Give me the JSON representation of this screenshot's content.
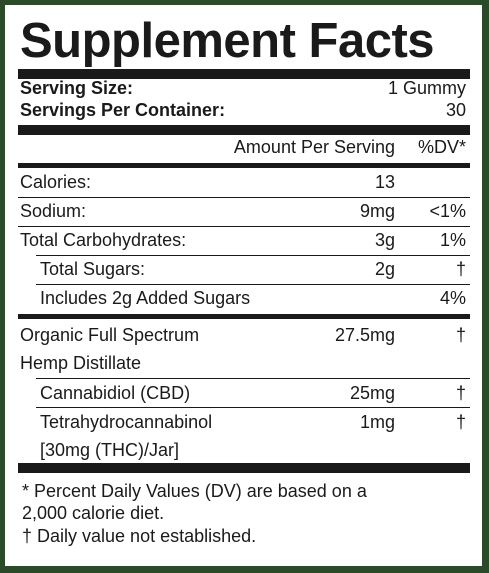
{
  "title": "Supplement Facts",
  "serving": {
    "size_label": "Serving Size:",
    "size_value": "1 Gummy",
    "per_container_label": "Servings Per Container:",
    "per_container_value": "30"
  },
  "header": {
    "amount": "Amount Per Serving",
    "dv": "%DV*"
  },
  "rows": [
    {
      "name": "Calories:",
      "amount": "13",
      "dv": ""
    },
    {
      "name": "Sodium:",
      "amount": "9mg",
      "dv": "<1%"
    },
    {
      "name": "Total Carbohydrates:",
      "amount": "3g",
      "dv": "1%"
    },
    {
      "name": "Total Sugars:",
      "amount": "2g",
      "dv": "†"
    },
    {
      "name": "Includes 2g Added Sugars",
      "amount": "",
      "dv": "4%"
    }
  ],
  "hemp": {
    "line1": "Organic Full Spectrum",
    "line2": "Hemp Distillate",
    "amount": "27.5mg",
    "dv": "†"
  },
  "cbd": {
    "name": "Cannabidiol (CBD)",
    "amount": "25mg",
    "dv": "†"
  },
  "thc": {
    "line1": "Tetrahydrocannabinol",
    "line2": "[30mg (THC)/Jar]",
    "amount": "1mg",
    "dv": "†"
  },
  "footnotes": {
    "line1": "* Percent Daily Values (DV) are based on a",
    "line2": "2,000 calorie diet.",
    "line3": "† Daily value not established."
  }
}
